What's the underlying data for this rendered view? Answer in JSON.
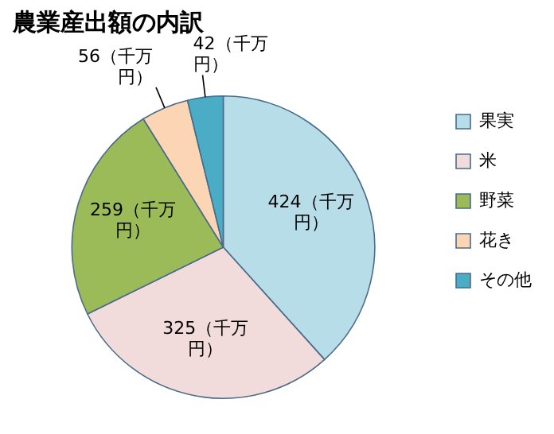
{
  "chart_data": {
    "type": "pie",
    "title": "農業産出額の内訳",
    "categories": [
      "果実",
      "米",
      "野菜",
      "花き",
      "その他"
    ],
    "values": [
      424,
      325,
      259,
      56,
      42
    ],
    "colors": [
      "#b7dde8",
      "#f2dcdb",
      "#9bbb59",
      "#fcd5b5",
      "#4bacc6"
    ],
    "value_labels": [
      "424（千万円）",
      "325（千万円）",
      "259（千万円）",
      "56（千万円）",
      "42（千万円）"
    ],
    "legend": "right"
  }
}
